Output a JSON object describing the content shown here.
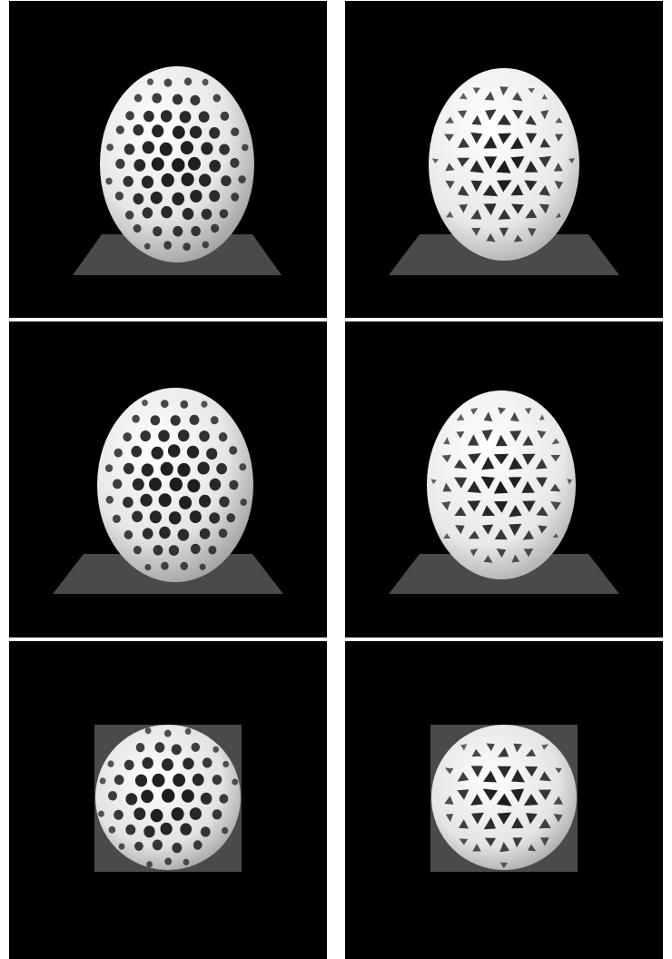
{
  "panels": [
    {
      "id": "p-r1-left",
      "pattern": "voronoi-holes",
      "view": "perspective",
      "colors": {
        "background": "#000000",
        "shell": "#f2f2f2",
        "floor": "#4a4a4a"
      }
    },
    {
      "id": "p-r1-right",
      "pattern": "triangular-lattice",
      "view": "perspective",
      "colors": {
        "background": "#000000",
        "shell": "#f2f2f2",
        "floor": "#4a4a4a"
      }
    },
    {
      "id": "p-r2-left",
      "pattern": "voronoi-holes",
      "view": "perspective",
      "colors": {
        "background": "#000000",
        "shell": "#f2f2f2",
        "floor": "#4a4a4a"
      }
    },
    {
      "id": "p-r2-right",
      "pattern": "triangular-lattice",
      "view": "perspective",
      "colors": {
        "background": "#000000",
        "shell": "#f2f2f2",
        "floor": "#4a4a4a"
      }
    },
    {
      "id": "p-r3-left",
      "pattern": "voronoi-holes",
      "view": "top",
      "colors": {
        "background": "#000000",
        "shell": "#f2f2f2",
        "floor": "#4a4a4a"
      }
    },
    {
      "id": "p-r3-right",
      "pattern": "triangular-lattice",
      "view": "top",
      "colors": {
        "background": "#000000",
        "shell": "#f2f2f2",
        "floor": "#4a4a4a"
      }
    }
  ]
}
